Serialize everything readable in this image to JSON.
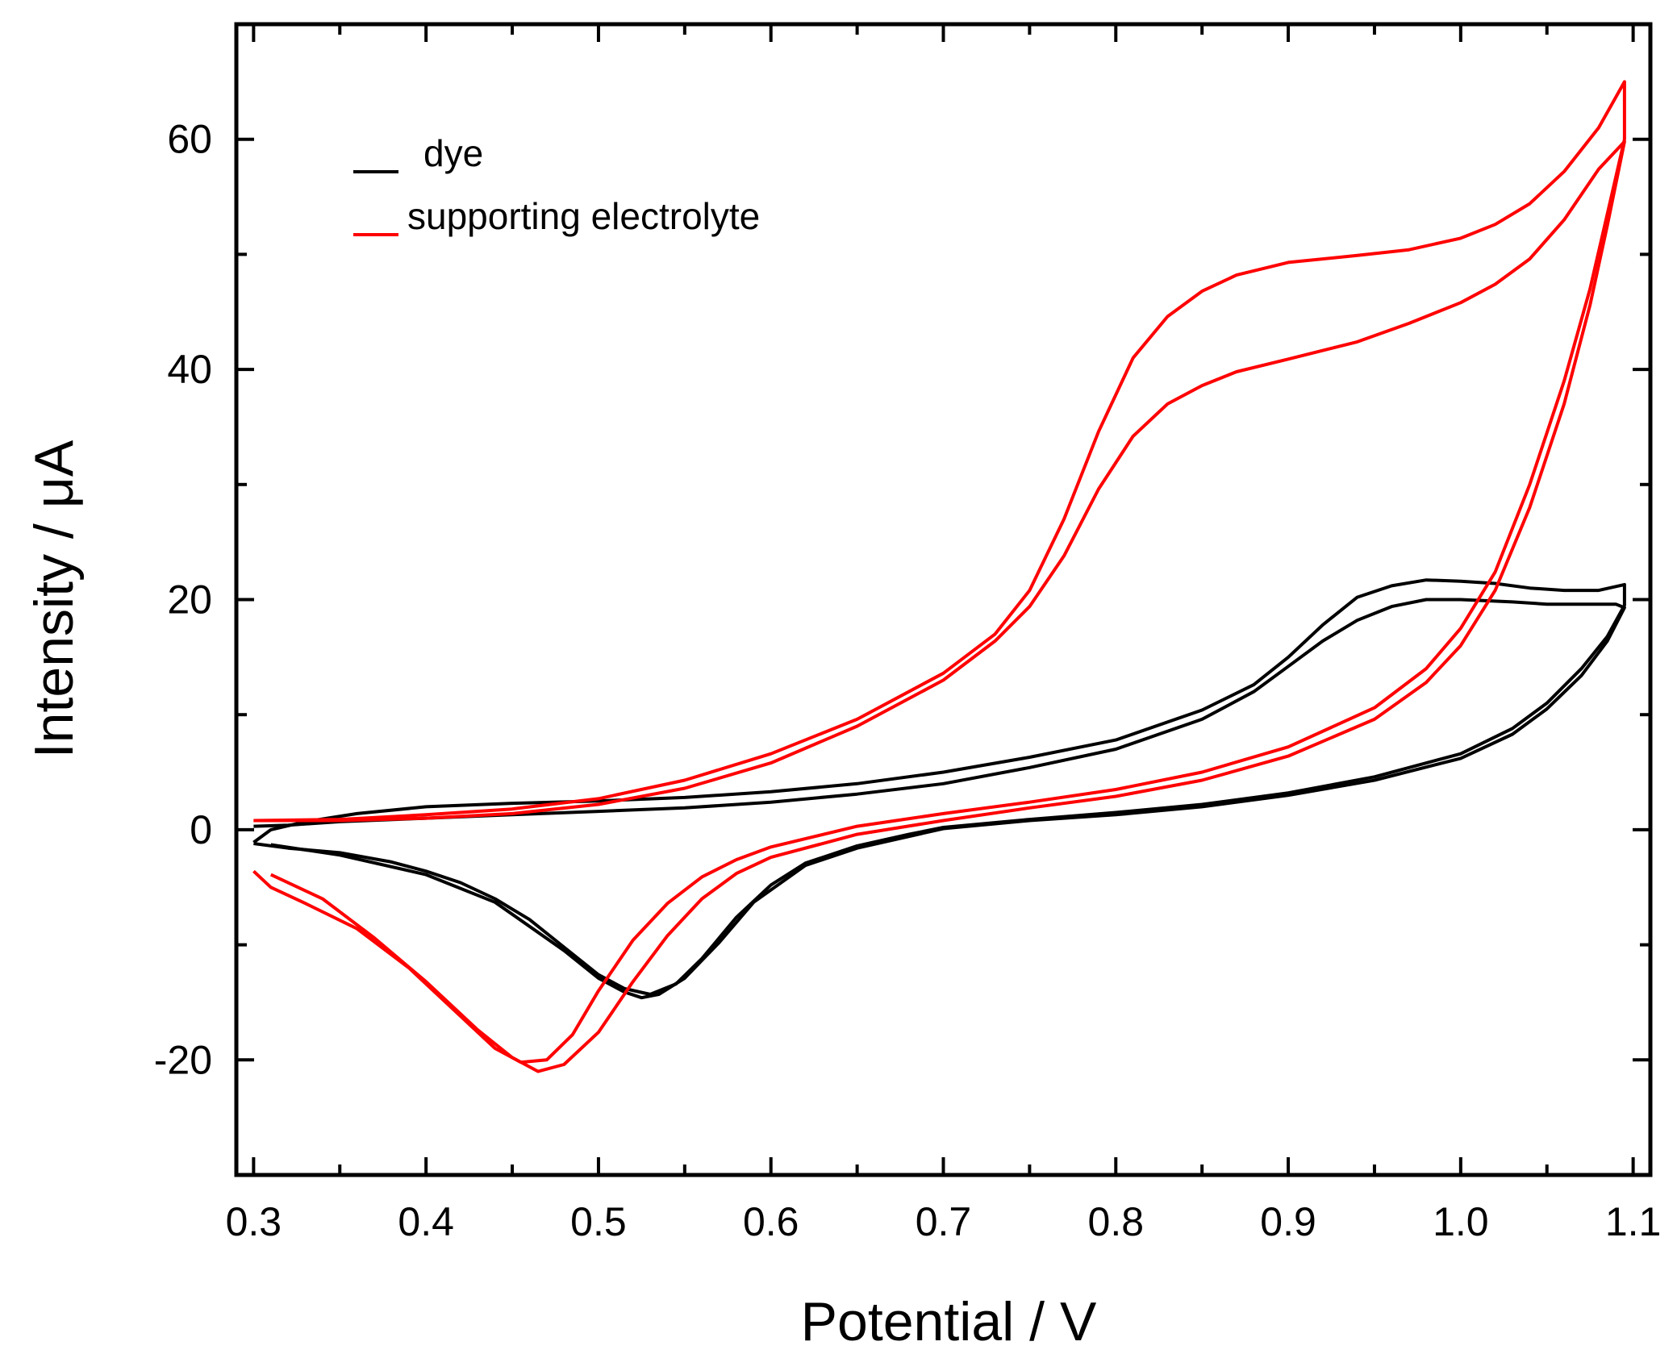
{
  "chart_data": {
    "type": "line",
    "title": "",
    "xlabel": "Potential / V",
    "ylabel": "Intensity / μA",
    "xlim": [
      0.29,
      1.11
    ],
    "ylim": [
      -30,
      70
    ],
    "x_ticks": [
      "0.3",
      "0.4",
      "0.5",
      "0.6",
      "0.7",
      "0.8",
      "0.9",
      "1.0",
      "1.1"
    ],
    "y_ticks": [
      "-20",
      "0",
      "20",
      "40",
      "60"
    ],
    "grid": false,
    "legend_position": "top-left",
    "series": [
      {
        "name": "dye",
        "color": "#000000",
        "curves": [
          [
            [
              0.3,
              -1.2
            ],
            [
              0.32,
              -1.6
            ],
            [
              0.35,
              -2.0
            ],
            [
              0.38,
              -2.8
            ],
            [
              0.4,
              -3.6
            ],
            [
              0.42,
              -4.6
            ],
            [
              0.44,
              -6.0
            ],
            [
              0.46,
              -7.8
            ],
            [
              0.48,
              -10.2
            ],
            [
              0.5,
              -12.6
            ],
            [
              0.515,
              -13.8
            ],
            [
              0.53,
              -14.3
            ],
            [
              0.545,
              -13.4
            ],
            [
              0.56,
              -11.2
            ],
            [
              0.58,
              -7.6
            ],
            [
              0.6,
              -4.8
            ],
            [
              0.62,
              -2.9
            ],
            [
              0.65,
              -1.4
            ],
            [
              0.68,
              -0.4
            ],
            [
              0.7,
              0.2
            ],
            [
              0.75,
              0.9
            ],
            [
              0.8,
              1.5
            ],
            [
              0.85,
              2.2
            ],
            [
              0.9,
              3.2
            ],
            [
              0.95,
              4.6
            ],
            [
              1.0,
              6.6
            ],
            [
              1.03,
              8.8
            ],
            [
              1.05,
              11.0
            ],
            [
              1.07,
              14.0
            ],
            [
              1.085,
              16.8
            ],
            [
              1.095,
              19.5
            ],
            [
              1.095,
              21.3
            ],
            [
              1.08,
              20.8
            ],
            [
              1.06,
              20.8
            ],
            [
              1.04,
              21.0
            ],
            [
              1.02,
              21.4
            ],
            [
              1.0,
              21.6
            ],
            [
              0.98,
              21.7
            ],
            [
              0.96,
              21.2
            ],
            [
              0.94,
              20.2
            ],
            [
              0.92,
              17.8
            ],
            [
              0.9,
              15.0
            ],
            [
              0.88,
              12.6
            ],
            [
              0.85,
              10.4
            ],
            [
              0.8,
              7.8
            ],
            [
              0.75,
              6.3
            ],
            [
              0.7,
              5.0
            ],
            [
              0.65,
              4.0
            ],
            [
              0.6,
              3.3
            ],
            [
              0.55,
              2.8
            ],
            [
              0.5,
              2.5
            ],
            [
              0.45,
              2.3
            ],
            [
              0.4,
              2.0
            ],
            [
              0.36,
              1.4
            ],
            [
              0.33,
              0.7
            ],
            [
              0.31,
              0.0
            ],
            [
              0.3,
              -1.1
            ]
          ],
          [
            [
              0.31,
              -1.3
            ],
            [
              0.35,
              -2.2
            ],
            [
              0.4,
              -3.9
            ],
            [
              0.44,
              -6.3
            ],
            [
              0.48,
              -10.5
            ],
            [
              0.5,
              -12.9
            ],
            [
              0.515,
              -14.1
            ],
            [
              0.525,
              -14.6
            ],
            [
              0.535,
              -14.3
            ],
            [
              0.55,
              -12.9
            ],
            [
              0.57,
              -9.8
            ],
            [
              0.59,
              -6.3
            ],
            [
              0.62,
              -3.1
            ],
            [
              0.65,
              -1.6
            ],
            [
              0.7,
              0.1
            ],
            [
              0.75,
              0.8
            ],
            [
              0.8,
              1.3
            ],
            [
              0.85,
              2.0
            ],
            [
              0.9,
              3.0
            ],
            [
              0.95,
              4.3
            ],
            [
              1.0,
              6.2
            ],
            [
              1.03,
              8.3
            ],
            [
              1.05,
              10.5
            ],
            [
              1.07,
              13.4
            ],
            [
              1.085,
              16.4
            ],
            [
              1.095,
              19.3
            ],
            [
              1.09,
              19.6
            ],
            [
              1.07,
              19.6
            ],
            [
              1.05,
              19.6
            ],
            [
              1.03,
              19.8
            ],
            [
              1.0,
              20.0
            ],
            [
              0.98,
              20.0
            ],
            [
              0.96,
              19.4
            ],
            [
              0.94,
              18.2
            ],
            [
              0.92,
              16.4
            ],
            [
              0.9,
              14.2
            ],
            [
              0.88,
              12.0
            ],
            [
              0.85,
              9.6
            ],
            [
              0.8,
              7.0
            ],
            [
              0.75,
              5.4
            ],
            [
              0.7,
              4.0
            ],
            [
              0.65,
              3.1
            ],
            [
              0.6,
              2.4
            ],
            [
              0.55,
              1.9
            ],
            [
              0.5,
              1.6
            ],
            [
              0.45,
              1.3
            ],
            [
              0.4,
              1.0
            ],
            [
              0.35,
              0.7
            ],
            [
              0.32,
              0.4
            ],
            [
              0.3,
              0.3
            ]
          ]
        ]
      },
      {
        "name": "supporting electrolyte",
        "color": "#ff0000",
        "curves": [
          [
            [
              0.3,
              -3.6
            ],
            [
              0.31,
              -5.0
            ],
            [
              0.33,
              -6.4
            ],
            [
              0.36,
              -8.6
            ],
            [
              0.39,
              -12.0
            ],
            [
              0.42,
              -16.2
            ],
            [
              0.44,
              -19.0
            ],
            [
              0.455,
              -20.2
            ],
            [
              0.47,
              -20.0
            ],
            [
              0.485,
              -17.8
            ],
            [
              0.5,
              -14.0
            ],
            [
              0.52,
              -9.6
            ],
            [
              0.54,
              -6.4
            ],
            [
              0.56,
              -4.1
            ],
            [
              0.58,
              -2.6
            ],
            [
              0.6,
              -1.5
            ],
            [
              0.65,
              0.3
            ],
            [
              0.7,
              1.4
            ],
            [
              0.75,
              2.4
            ],
            [
              0.8,
              3.5
            ],
            [
              0.85,
              5.0
            ],
            [
              0.9,
              7.2
            ],
            [
              0.95,
              10.6
            ],
            [
              0.98,
              14.0
            ],
            [
              1.0,
              17.5
            ],
            [
              1.02,
              22.4
            ],
            [
              1.04,
              30.0
            ],
            [
              1.06,
              39.0
            ],
            [
              1.075,
              47.0
            ],
            [
              1.085,
              53.5
            ],
            [
              1.095,
              60.0
            ],
            [
              1.095,
              65.0
            ],
            [
              1.08,
              61.0
            ],
            [
              1.06,
              57.2
            ],
            [
              1.04,
              54.4
            ],
            [
              1.02,
              52.6
            ],
            [
              1.0,
              51.4
            ],
            [
              0.97,
              50.4
            ],
            [
              0.94,
              49.9
            ],
            [
              0.9,
              49.3
            ],
            [
              0.87,
              48.2
            ],
            [
              0.85,
              46.8
            ],
            [
              0.83,
              44.6
            ],
            [
              0.81,
              41.0
            ],
            [
              0.79,
              34.6
            ],
            [
              0.77,
              27.0
            ],
            [
              0.75,
              20.8
            ],
            [
              0.73,
              17.0
            ],
            [
              0.7,
              13.6
            ],
            [
              0.65,
              9.6
            ],
            [
              0.6,
              6.6
            ],
            [
              0.55,
              4.3
            ],
            [
              0.5,
              2.7
            ],
            [
              0.45,
              1.8
            ],
            [
              0.4,
              1.3
            ],
            [
              0.35,
              0.9
            ],
            [
              0.3,
              0.8
            ]
          ],
          [
            [
              0.31,
              -3.9
            ],
            [
              0.34,
              -6.0
            ],
            [
              0.37,
              -9.4
            ],
            [
              0.4,
              -13.2
            ],
            [
              0.43,
              -17.4
            ],
            [
              0.45,
              -19.8
            ],
            [
              0.465,
              -21.0
            ],
            [
              0.48,
              -20.4
            ],
            [
              0.5,
              -17.6
            ],
            [
              0.52,
              -13.2
            ],
            [
              0.54,
              -9.2
            ],
            [
              0.56,
              -6.0
            ],
            [
              0.58,
              -3.8
            ],
            [
              0.6,
              -2.4
            ],
            [
              0.65,
              -0.4
            ],
            [
              0.7,
              0.8
            ],
            [
              0.75,
              1.9
            ],
            [
              0.8,
              2.9
            ],
            [
              0.85,
              4.3
            ],
            [
              0.9,
              6.4
            ],
            [
              0.95,
              9.6
            ],
            [
              0.98,
              12.8
            ],
            [
              1.0,
              16.0
            ],
            [
              1.02,
              20.8
            ],
            [
              1.04,
              28.0
            ],
            [
              1.06,
              37.0
            ],
            [
              1.075,
              45.6
            ],
            [
              1.085,
              52.5
            ],
            [
              1.095,
              59.8
            ],
            [
              1.08,
              57.4
            ],
            [
              1.06,
              53.0
            ],
            [
              1.04,
              49.6
            ],
            [
              1.02,
              47.4
            ],
            [
              1.0,
              45.8
            ],
            [
              0.97,
              44.0
            ],
            [
              0.94,
              42.4
            ],
            [
              0.9,
              40.9
            ],
            [
              0.87,
              39.8
            ],
            [
              0.85,
              38.6
            ],
            [
              0.83,
              37.0
            ],
            [
              0.81,
              34.2
            ],
            [
              0.79,
              29.6
            ],
            [
              0.77,
              23.8
            ],
            [
              0.75,
              19.4
            ],
            [
              0.73,
              16.4
            ],
            [
              0.7,
              13.0
            ],
            [
              0.65,
              9.0
            ],
            [
              0.6,
              5.8
            ],
            [
              0.55,
              3.6
            ],
            [
              0.5,
              2.2
            ],
            [
              0.45,
              1.4
            ],
            [
              0.4,
              1.0
            ],
            [
              0.35,
              0.8
            ],
            [
              0.3,
              0.8
            ]
          ]
        ]
      }
    ]
  }
}
